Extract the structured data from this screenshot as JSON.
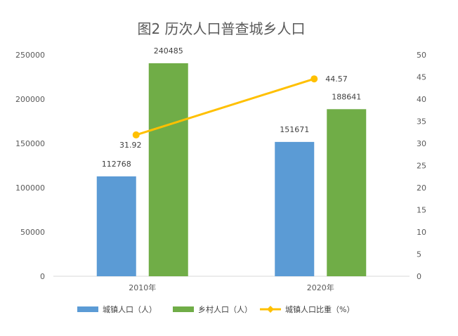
{
  "chart_data": {
    "type": "bar",
    "title": "图2  历次人口普查城乡人口",
    "categories": [
      "2010年",
      "2020年"
    ],
    "series": [
      {
        "name": "城镇人口（人）",
        "type": "bar",
        "axis": "left",
        "color": "#5b9bd5",
        "values": [
          112768,
          151671
        ]
      },
      {
        "name": "乡村人口（人）",
        "type": "bar",
        "axis": "left",
        "color": "#70ad47",
        "values": [
          240485,
          188641
        ]
      },
      {
        "name": "城镇人口比重（%）",
        "type": "line",
        "axis": "right",
        "color": "#ffc000",
        "values": [
          31.92,
          44.57
        ]
      }
    ],
    "left_axis": {
      "min": 0,
      "max": 250000,
      "step": 50000,
      "ticks": [
        "0",
        "50000",
        "100000",
        "150000",
        "200000",
        "250000"
      ]
    },
    "right_axis": {
      "min": 0,
      "max": 50,
      "step": 5,
      "ticks": [
        "0",
        "5",
        "10",
        "15",
        "20",
        "25",
        "30",
        "35",
        "40",
        "45",
        "50"
      ]
    },
    "data_labels": {
      "bars": [
        [
          "112768",
          "151671"
        ],
        [
          "240485",
          "188641"
        ]
      ],
      "line": [
        "31.92",
        "44.57"
      ]
    },
    "grid": false,
    "legend_position": "bottom"
  }
}
